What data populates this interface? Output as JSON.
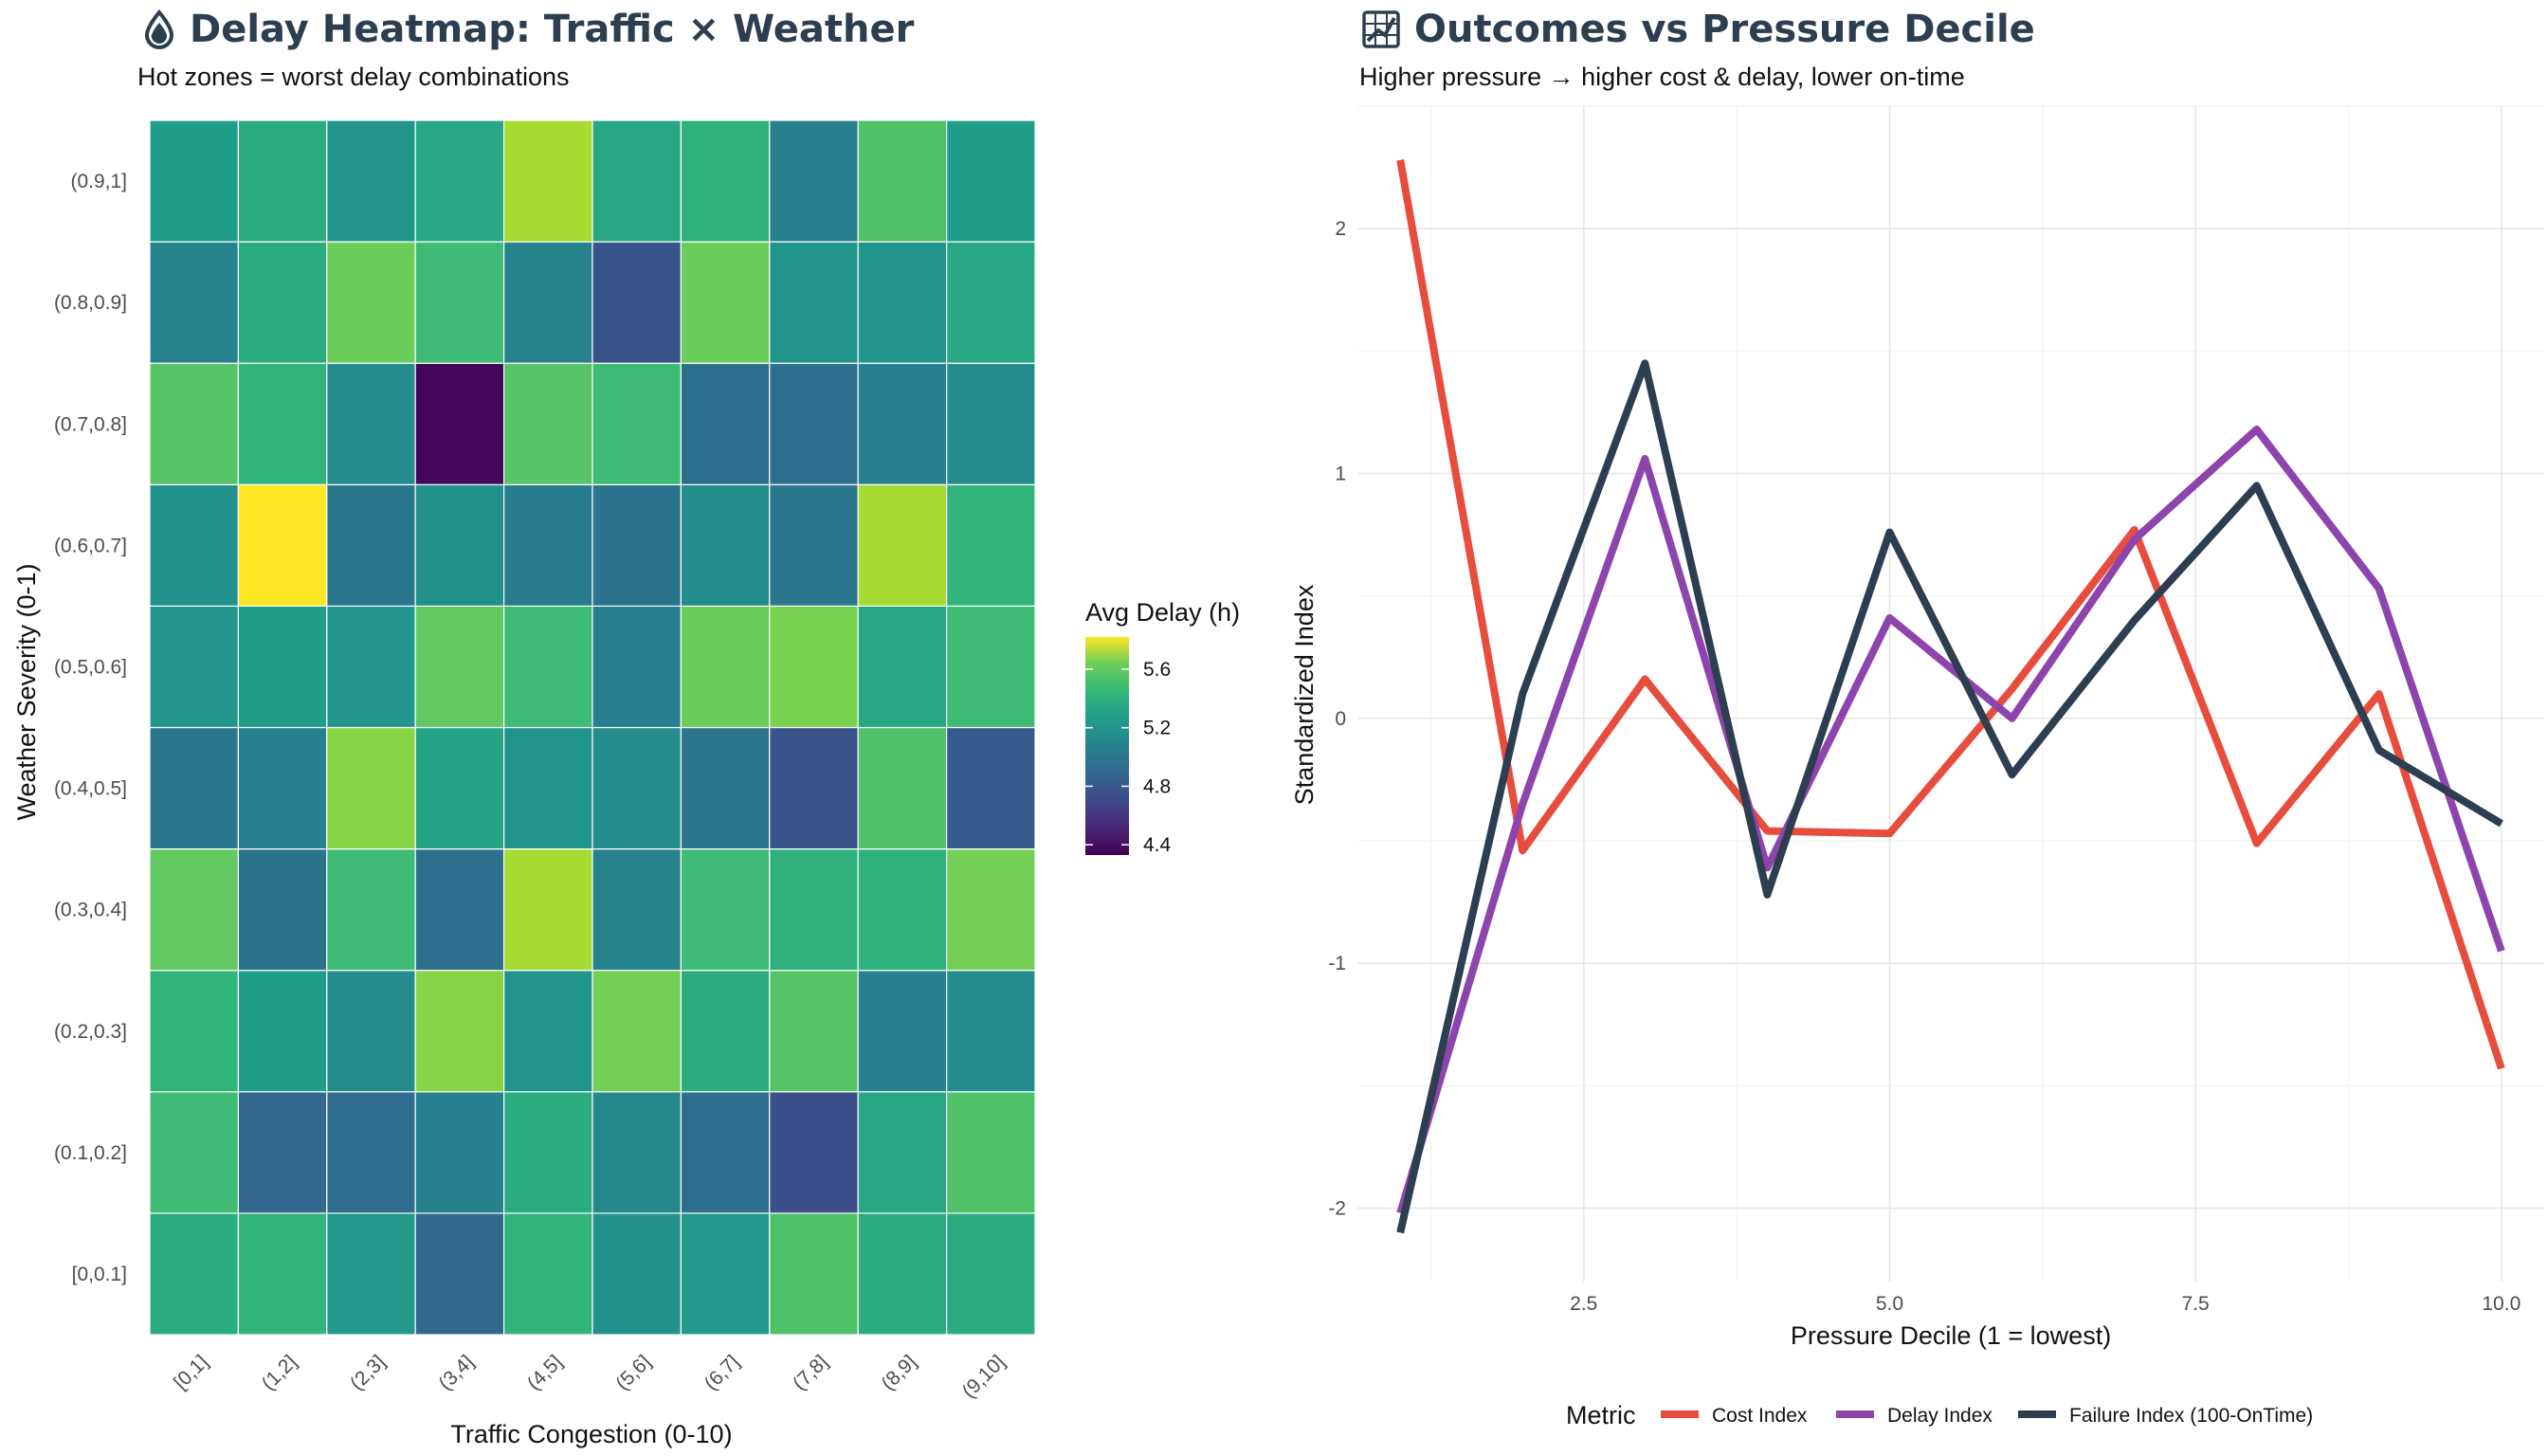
{
  "left_panel": {
    "title": "Delay Heatmap: Traffic × Weather",
    "title_icon": "droplet-icon",
    "subtitle": "Hot zones = worst delay combinations"
  },
  "right_panel": {
    "title": "Outcomes vs Pressure Decile",
    "title_icon": "chart-icon",
    "subtitle": "Higher pressure → higher cost & delay, lower on-time"
  },
  "chart_data": [
    {
      "type": "heatmap",
      "xlabel": "Traffic Congestion (0-10)",
      "ylabel": "Weather Severity (0-1)",
      "x_categories": [
        "[0,1]",
        "(1,2]",
        "(2,3]",
        "(3,4]",
        "(4,5]",
        "(5,6]",
        "(6,7]",
        "(7,8]",
        "(8,9]",
        "(9,10]"
      ],
      "y_categories": [
        "[0,0.1]",
        "(0.1,0.2]",
        "(0.2,0.3]",
        "(0.3,0.4]",
        "(0.4,0.5]",
        "(0.5,0.6]",
        "(0.6,0.7]",
        "(0.7,0.8]",
        "(0.8,0.9]",
        "(0.9,1]"
      ],
      "values": [
        [
          5.25,
          5.3,
          5.12,
          4.82,
          5.3,
          5.08,
          5.12,
          5.4,
          5.25,
          5.25
        ],
        [
          5.35,
          4.82,
          4.85,
          4.98,
          5.25,
          5.03,
          4.88,
          4.7,
          5.22,
          5.4
        ],
        [
          5.3,
          5.15,
          5.05,
          5.55,
          5.1,
          5.5,
          5.25,
          5.42,
          4.98,
          5.05
        ],
        [
          5.45,
          4.9,
          5.35,
          4.88,
          5.62,
          5.0,
          5.35,
          5.28,
          5.28,
          5.5
        ],
        [
          4.92,
          4.98,
          5.55,
          5.2,
          5.1,
          5.05,
          4.92,
          4.72,
          5.4,
          4.75
        ],
        [
          5.1,
          5.15,
          5.1,
          5.45,
          5.35,
          4.98,
          5.48,
          5.52,
          5.22,
          5.35
        ],
        [
          5.08,
          5.82,
          4.92,
          5.08,
          4.95,
          4.9,
          5.05,
          4.92,
          5.62,
          5.3
        ],
        [
          5.42,
          5.3,
          5.05,
          4.35,
          5.42,
          5.35,
          4.88,
          4.88,
          4.98,
          5.05
        ],
        [
          5.0,
          5.25,
          5.48,
          5.35,
          5.0,
          4.72,
          5.48,
          5.1,
          5.1,
          5.22
        ],
        [
          5.15,
          5.25,
          5.1,
          5.22,
          5.62,
          5.22,
          5.28,
          4.98,
          5.4,
          5.15
        ]
      ],
      "legend": {
        "title": "Avg Delay (h)",
        "ticks": [
          4.4,
          4.8,
          5.2,
          5.6
        ],
        "range": [
          4.33,
          5.82
        ],
        "placement": "right",
        "palette": "viridis"
      }
    },
    {
      "type": "line",
      "xlabel": "Pressure Decile (1 = lowest)",
      "ylabel": "Standardized Index",
      "x": [
        1,
        2,
        3,
        4,
        5,
        6,
        7,
        8,
        9,
        10
      ],
      "x_ticks": [
        "2.5",
        "5.0",
        "7.5",
        "10.0"
      ],
      "y_ticks": [
        "-2",
        "-1",
        "0",
        "1",
        "2"
      ],
      "xlim": [
        0.65,
        10.35
      ],
      "ylim": [
        -2.3,
        2.5
      ],
      "grid": true,
      "legend": {
        "title": "Metric",
        "placement": "bottom"
      },
      "series": [
        {
          "name": "Cost Index",
          "color": "#e74c3c",
          "values": [
            2.28,
            -0.54,
            0.16,
            -0.46,
            -0.47,
            0.12,
            0.77,
            -0.51,
            0.1,
            -1.43
          ]
        },
        {
          "name": "Delay Index",
          "color": "#8e44ad",
          "values": [
            -2.02,
            -0.35,
            1.06,
            -0.61,
            0.41,
            0.0,
            0.73,
            1.18,
            0.53,
            -0.95
          ]
        },
        {
          "name": "Failure Index (100-OnTime)",
          "color": "#2c3e50",
          "values": [
            -2.1,
            0.1,
            1.45,
            -0.72,
            0.76,
            -0.23,
            0.4,
            0.95,
            -0.13,
            -0.43
          ]
        }
      ]
    }
  ]
}
